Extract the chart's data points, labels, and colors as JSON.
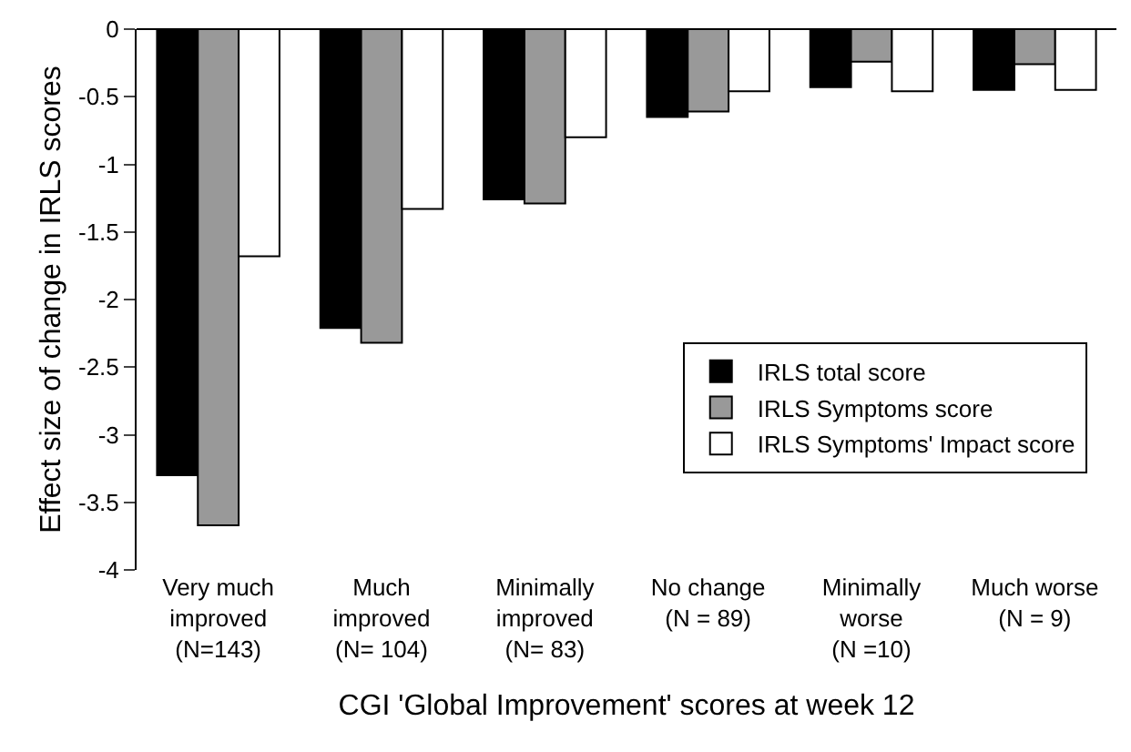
{
  "chart_data": {
    "type": "bar",
    "xlabel": "CGI 'Global Improvement' scores at week 12",
    "ylabel": "Effect size of change in IRLS scores",
    "categories": [
      "Very much\nimproved\n(N=143)",
      "Much\nimproved\n(N= 104)",
      "Minimally\nimproved\n(N= 83)",
      "No change\n(N = 89)",
      "Minimally\nworse\n(N =10)",
      "Much worse\n(N = 9)"
    ],
    "series": [
      {
        "name": "IRLS total score",
        "color": "#000000",
        "values": [
          -3.3,
          -2.21,
          -1.26,
          -0.65,
          -0.43,
          -0.45
        ]
      },
      {
        "name": "IRLS Symptoms score",
        "color": "#999999",
        "values": [
          -3.67,
          -2.32,
          -1.29,
          -0.61,
          -0.24,
          -0.26
        ]
      },
      {
        "name": "IRLS Symptoms' Impact score",
        "color": "#ffffff",
        "values": [
          -1.68,
          -1.33,
          -0.8,
          -0.46,
          -0.46,
          -0.45
        ]
      }
    ],
    "ylim": [
      -4,
      0
    ],
    "yticks": [
      -4,
      -3.5,
      -3,
      -2.5,
      -2,
      -1.5,
      -1,
      -0.5,
      0
    ],
    "grid": false,
    "legend": "right"
  }
}
